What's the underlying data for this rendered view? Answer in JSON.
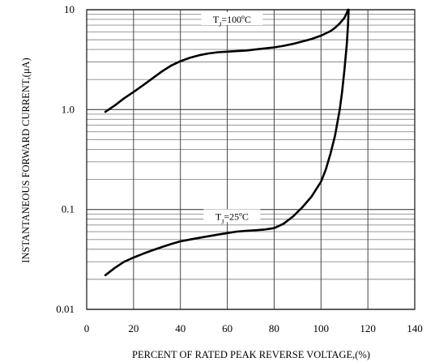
{
  "chart_data": {
    "type": "line",
    "xlabel": "PERCENT OF RATED PEAK REVERSE VOLTAGE,(%)",
    "ylabel": "INSTANTANEOUS FORWARD CURRENT,(μA)",
    "x_ticks": [
      "0",
      "20",
      "40",
      "60",
      "80",
      "100",
      "120",
      "140"
    ],
    "y_ticks": [
      "0.01",
      "0.1",
      "1.0",
      "10"
    ],
    "xlim": [
      0,
      140
    ],
    "ylim": [
      0.01,
      10
    ],
    "y_scale": "log",
    "grid": true,
    "series": [
      {
        "name": "TJ=100ºC",
        "label_main": "T",
        "label_sub": "J",
        "label_rest": "=100ºC",
        "x": [
          8,
          12,
          16,
          20,
          24,
          28,
          32,
          36,
          40,
          44,
          48,
          52,
          56,
          60,
          64,
          68,
          72,
          76,
          80,
          84,
          88,
          92,
          96,
          100,
          104,
          106,
          108,
          110,
          111,
          111.5
        ],
        "y": [
          0.95,
          1.1,
          1.3,
          1.5,
          1.75,
          2.05,
          2.4,
          2.75,
          3.05,
          3.3,
          3.5,
          3.65,
          3.75,
          3.8,
          3.85,
          3.9,
          4.0,
          4.1,
          4.2,
          4.35,
          4.55,
          4.8,
          5.1,
          5.5,
          6.1,
          6.6,
          7.3,
          8.3,
          9.3,
          10
        ]
      },
      {
        "name": "TJ=25ºC",
        "label_main": "T",
        "label_sub": "J",
        "label_rest": "=25ºC",
        "x": [
          8,
          12,
          16,
          20,
          24,
          28,
          32,
          36,
          40,
          44,
          48,
          52,
          56,
          60,
          64,
          68,
          72,
          76,
          80,
          84,
          88,
          92,
          96,
          100,
          102,
          104,
          106,
          108,
          109,
          110,
          111,
          111.5,
          111.8
        ],
        "y": [
          0.022,
          0.026,
          0.03,
          0.033,
          0.036,
          0.039,
          0.042,
          0.045,
          0.048,
          0.05,
          0.052,
          0.054,
          0.056,
          0.058,
          0.06,
          0.061,
          0.062,
          0.063,
          0.065,
          0.072,
          0.085,
          0.105,
          0.135,
          0.19,
          0.25,
          0.36,
          0.55,
          1.0,
          1.5,
          2.5,
          4.5,
          7.0,
          10
        ]
      }
    ]
  }
}
